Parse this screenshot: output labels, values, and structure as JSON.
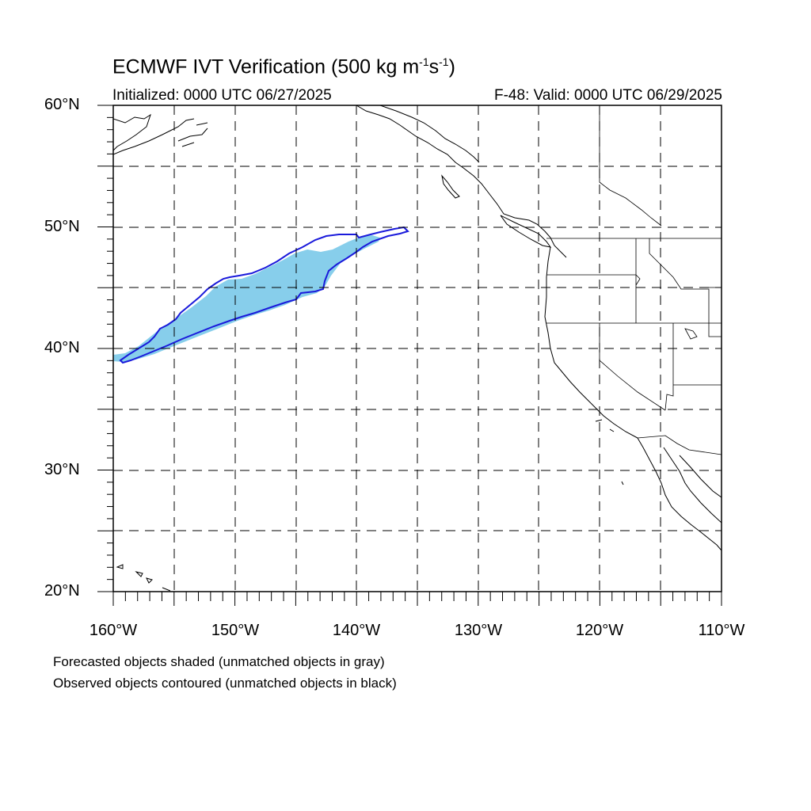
{
  "title": {
    "main": "ECMWF IVT Verification (500 kg m",
    "sup1": "-1",
    "mid": "s",
    "sup2": "-1",
    "end": ")"
  },
  "subtitle": {
    "initialized": "Initialized: 0000 UTC 06/27/2025",
    "valid": "F-48: Valid: 0000 UTC 06/29/2025"
  },
  "map": {
    "lon_range": [
      -160,
      -110
    ],
    "lat_range": [
      20,
      60
    ],
    "grid": "dashed",
    "lat_labels": [
      {
        "lat": 60,
        "text": "60°N"
      },
      {
        "lat": 50,
        "text": "50°N"
      },
      {
        "lat": 40,
        "text": "40°N"
      },
      {
        "lat": 30,
        "text": "30°N"
      },
      {
        "lat": 20,
        "text": "20°N"
      }
    ],
    "lon_labels": [
      {
        "lon": -160,
        "text": "160°W"
      },
      {
        "lon": -150,
        "text": "150°W"
      },
      {
        "lon": -140,
        "text": "140°W"
      },
      {
        "lon": -130,
        "text": "130°W"
      },
      {
        "lon": -120,
        "text": "120°W"
      },
      {
        "lon": -110,
        "text": "110°W"
      }
    ],
    "colors": {
      "forecast_fill": "#87ceeb",
      "observed_contour": "#1a1adb",
      "coast": "#000000"
    }
  },
  "captions": {
    "line1": "Forecasted objects shaded (unmatched objects in gray)",
    "line2": "Observed objects contoured (unmatched objects in black)"
  }
}
